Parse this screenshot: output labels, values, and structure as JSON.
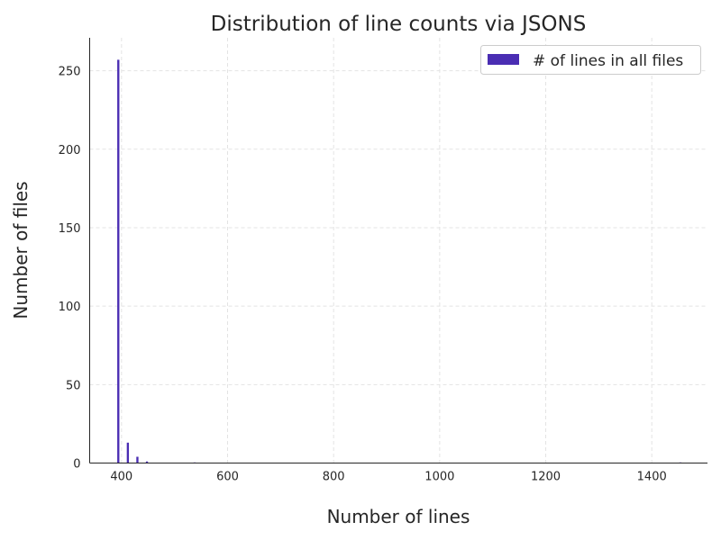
{
  "chart_data": {
    "type": "bar",
    "title": "Distribution of line counts via JSONS",
    "xlabel": "Number of lines",
    "ylabel": "Number of files",
    "xlim": [
      340,
      1505
    ],
    "ylim": [
      0,
      271
    ],
    "x_ticks": [
      "400",
      "600",
      "800",
      "1000",
      "1200",
      "1400"
    ],
    "x_tick_values": [
      400,
      600,
      800,
      1000,
      1200,
      1400
    ],
    "y_ticks": [
      "0",
      "50",
      "100",
      "150",
      "200",
      "250"
    ],
    "y_tick_values": [
      0,
      50,
      100,
      150,
      200,
      250
    ],
    "grid": true,
    "legend_position": "top-right",
    "series": [
      {
        "name": "# of lines in all files",
        "color": "#4a2db3",
        "bins": [
          {
            "x0": 392,
            "x1": 396,
            "value": 257
          },
          {
            "x0": 410,
            "x1": 414,
            "value": 13
          },
          {
            "x0": 428,
            "x1": 432,
            "value": 4
          },
          {
            "x0": 446,
            "x1": 450,
            "value": 1
          },
          {
            "x0": 536,
            "x1": 540,
            "value": 0.4
          },
          {
            "x0": 1452,
            "x1": 1456,
            "value": 0.4
          }
        ]
      }
    ]
  }
}
